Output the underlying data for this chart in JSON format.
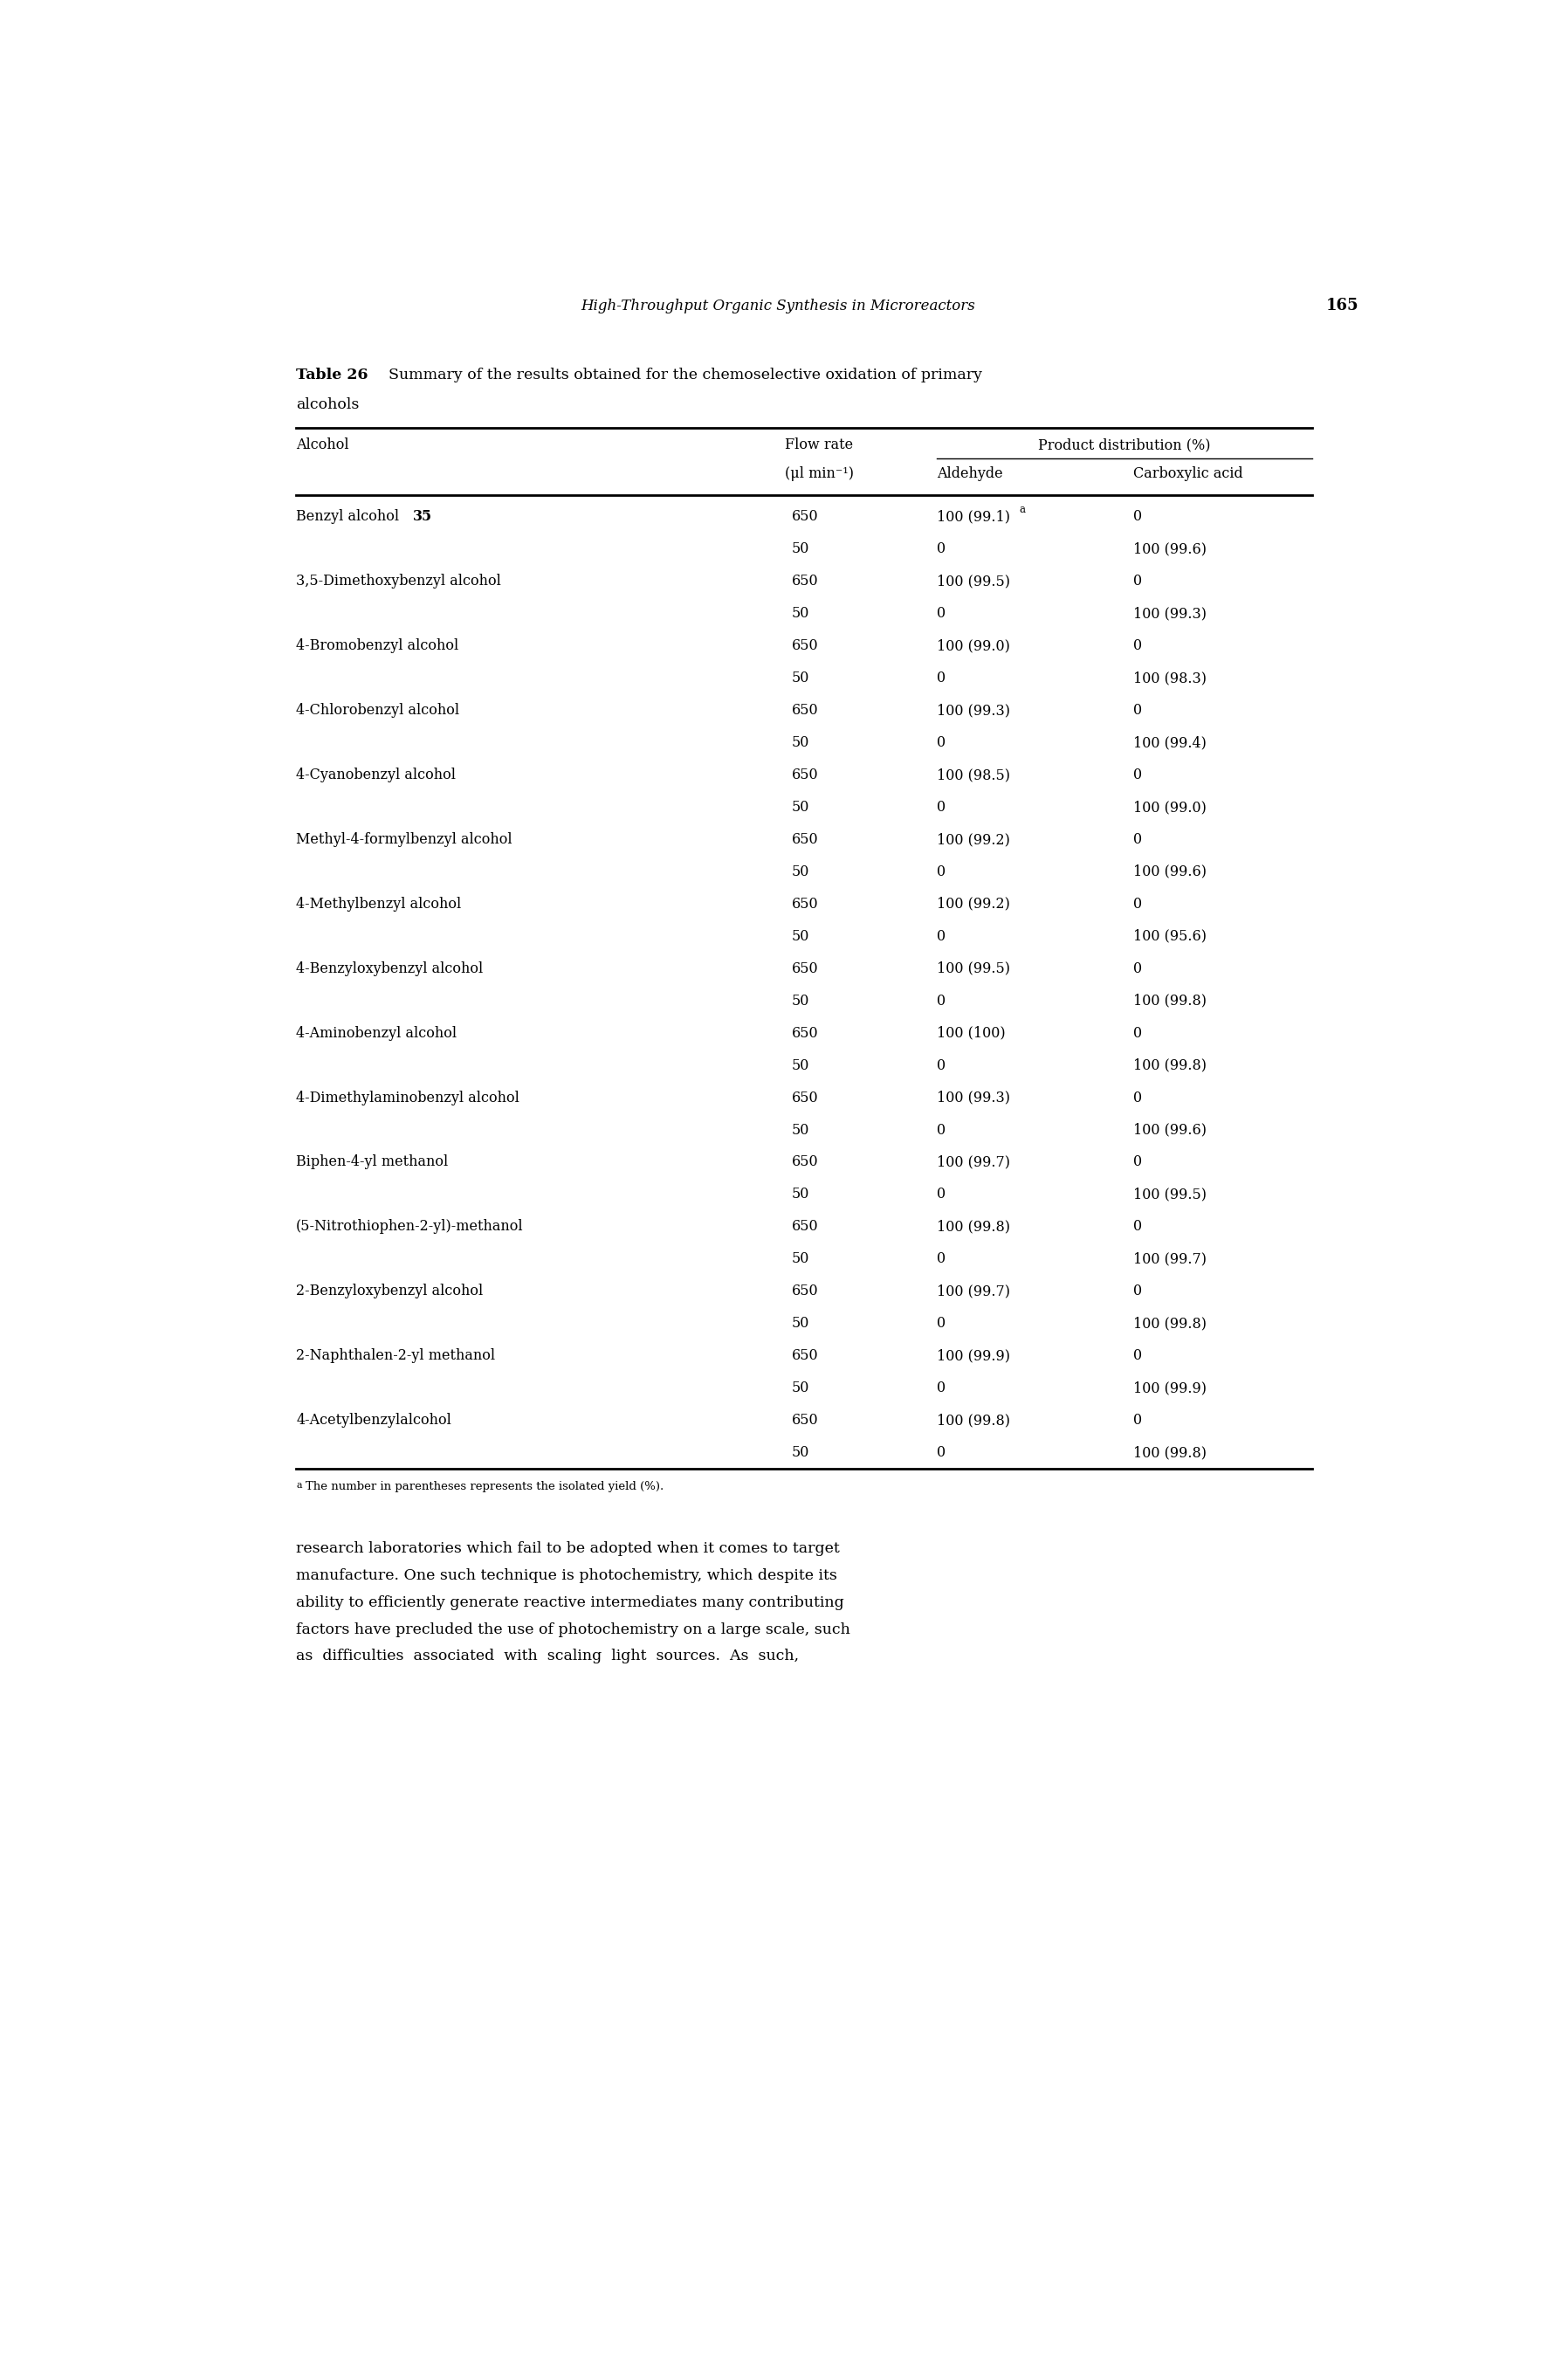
{
  "page_header": "High-Throughput Organic Synthesis in Microreactors",
  "page_number": "165",
  "table_label": "Table 26",
  "table_title_bold": "Summary of the results obtained for the chemoselective oxidation of primary",
  "table_title_line2": "alcohols",
  "col_group_header": "Product distribution (%)",
  "rows": [
    [
      "Benzyl alcohol 35",
      "650",
      "100 (99.1)^a",
      "0"
    ],
    [
      "",
      "50",
      "0",
      "100 (99.6)"
    ],
    [
      "3,5-Dimethoxybenzyl alcohol",
      "650",
      "100 (99.5)",
      "0"
    ],
    [
      "",
      "50",
      "0",
      "100 (99.3)"
    ],
    [
      "4-Bromobenzyl alcohol",
      "650",
      "100 (99.0)",
      "0"
    ],
    [
      "",
      "50",
      "0",
      "100 (98.3)"
    ],
    [
      "4-Chlorobenzyl alcohol",
      "650",
      "100 (99.3)",
      "0"
    ],
    [
      "",
      "50",
      "0",
      "100 (99.4)"
    ],
    [
      "4-Cyanobenzyl alcohol",
      "650",
      "100 (98.5)",
      "0"
    ],
    [
      "",
      "50",
      "0",
      "100 (99.0)"
    ],
    [
      "Methyl-4-formylbenzyl alcohol",
      "650",
      "100 (99.2)",
      "0"
    ],
    [
      "",
      "50",
      "0",
      "100 (99.6)"
    ],
    [
      "4-Methylbenzyl alcohol",
      "650",
      "100 (99.2)",
      "0"
    ],
    [
      "",
      "50",
      "0",
      "100 (95.6)"
    ],
    [
      "4-Benzyloxybenzyl alcohol",
      "650",
      "100 (99.5)",
      "0"
    ],
    [
      "",
      "50",
      "0",
      "100 (99.8)"
    ],
    [
      "4-Aminobenzyl alcohol",
      "650",
      "100 (100)",
      "0"
    ],
    [
      "",
      "50",
      "0",
      "100 (99.8)"
    ],
    [
      "4-Dimethylaminobenzyl alcohol",
      "650",
      "100 (99.3)",
      "0"
    ],
    [
      "",
      "50",
      "0",
      "100 (99.6)"
    ],
    [
      "Biphen-4-yl methanol",
      "650",
      "100 (99.7)",
      "0"
    ],
    [
      "",
      "50",
      "0",
      "100 (99.5)"
    ],
    [
      "(5-Nitrothiophen-2-yl)-methanol",
      "650",
      "100 (99.8)",
      "0"
    ],
    [
      "",
      "50",
      "0",
      "100 (99.7)"
    ],
    [
      "2-Benzyloxybenzyl alcohol",
      "650",
      "100 (99.7)",
      "0"
    ],
    [
      "",
      "50",
      "0",
      "100 (99.8)"
    ],
    [
      "2-Naphthalen-2-yl methanol",
      "650",
      "100 (99.9)",
      "0"
    ],
    [
      "",
      "50",
      "0",
      "100 (99.9)"
    ],
    [
      "4-Acetylbenzylalcohol",
      "650",
      "100 (99.8)",
      "0"
    ],
    [
      "",
      "50",
      "0",
      "100 (99.8)"
    ]
  ],
  "body_lines": [
    "research laboratories which fail to be adopted when it comes to target",
    "manufacture. One such technique is photochemistry, which despite its",
    "ability to efficiently generate reactive intermediates many contributing",
    "factors have precluded the use of photochemistry on a large scale, such",
    "as  difficulties  associated  with  scaling  light  sources.  As  such,"
  ],
  "background_color": "#ffffff",
  "text_color": "#000000",
  "font_size": 11.5,
  "header_font_size": 11.5,
  "title_font_size": 12.5,
  "body_font_size": 12.5
}
